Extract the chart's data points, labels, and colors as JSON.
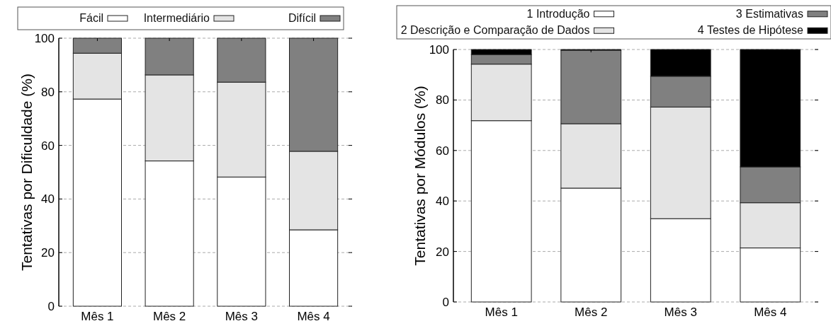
{
  "chart_data": [
    {
      "type": "bar",
      "stacked": true,
      "categories": [
        "Mês 1",
        "Mês 2",
        "Mês 3",
        "Mês 4"
      ],
      "ylabel": "Tentativas por Dificuldade (%)",
      "ylim": [
        0,
        100
      ],
      "yticks": [
        0,
        20,
        40,
        60,
        80,
        100
      ],
      "grid": "y",
      "legend": "top",
      "series": [
        {
          "name": "Fácil",
          "color": "#ffffff",
          "values": [
            77.3,
            54.2,
            48.2,
            28.5
          ]
        },
        {
          "name": "Intermediário",
          "color": "#e4e4e4",
          "values": [
            17.1,
            32.1,
            35.4,
            29.3
          ]
        },
        {
          "name": "Difícil",
          "color": "#808080",
          "values": [
            5.6,
            13.7,
            16.4,
            42.2
          ]
        }
      ]
    },
    {
      "type": "bar",
      "stacked": true,
      "categories": [
        "Mês 1",
        "Mês 2",
        "Mês 3",
        "Mês 4"
      ],
      "ylabel": "Tentativas por Módulos (%)",
      "ylim": [
        0,
        100
      ],
      "yticks": [
        0,
        20,
        40,
        60,
        80,
        100
      ],
      "grid": "y",
      "legend": "top",
      "series": [
        {
          "name": "1 Introdução",
          "color": "#ffffff",
          "values": [
            71.8,
            45.1,
            33.0,
            21.4
          ]
        },
        {
          "name": "2 Descrição e Comparação de Dados",
          "color": "#e4e4e4",
          "values": [
            22.4,
            25.5,
            44.2,
            17.9
          ]
        },
        {
          "name": "3 Estimativas",
          "color": "#808080",
          "values": [
            3.8,
            29.1,
            12.2,
            14.2
          ]
        },
        {
          "name": "4 Testes de Hipótese",
          "color": "#000000",
          "values": [
            2.0,
            0.3,
            10.6,
            46.5
          ]
        }
      ]
    }
  ]
}
